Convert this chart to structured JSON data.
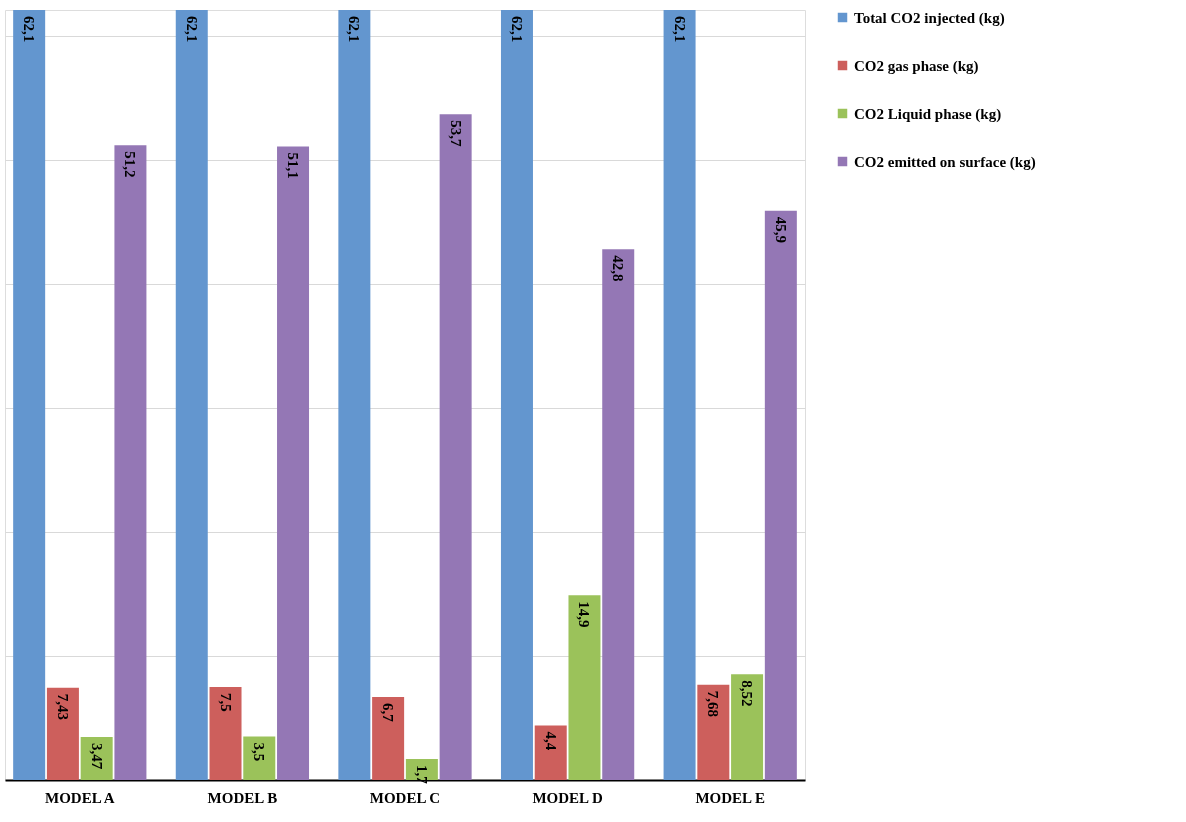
{
  "chart_data": {
    "type": "bar",
    "categories": [
      "MODEL A",
      "MODEL B",
      "MODEL C",
      "MODEL D",
      "MODEL E"
    ],
    "series": [
      {
        "name": "Total CO2 injected (kg)",
        "color": "#6396cf",
        "values": [
          62.1,
          62.1,
          62.1,
          62.1,
          62.1
        ],
        "value_labels": [
          "62,1",
          "62,1",
          "62,1",
          "62,1",
          "62,1"
        ]
      },
      {
        "name": "CO2 gas phase (kg)",
        "color": "#cd5f5c",
        "values": [
          7.43,
          7.5,
          6.7,
          4.4,
          7.68
        ],
        "value_labels": [
          "7,43",
          "7,5",
          "6,7",
          "4,4",
          "7,68"
        ]
      },
      {
        "name": "CO2 Liquid phase (kg)",
        "color": "#9bc25a",
        "values": [
          3.47,
          3.5,
          1.7,
          14.9,
          8.52
        ],
        "value_labels": [
          "3,47",
          "3,5",
          "1,7",
          "14,9",
          "8,52"
        ]
      },
      {
        "name": "CO2 emitted on surface (kg)",
        "color": "#9477b5",
        "values": [
          51.2,
          51.1,
          53.7,
          42.8,
          45.9
        ],
        "value_labels": [
          "51,2",
          "51,1",
          "53,7",
          "42,8",
          "45,9"
        ]
      }
    ],
    "ylim": [
      0,
      62.1
    ],
    "yticks": [
      {
        "value": 0,
        "label": null
      },
      {
        "value": 10,
        "label": null
      },
      {
        "value": 20,
        "label": null
      },
      {
        "value": 30,
        "label": null
      },
      {
        "value": 40,
        "label": null
      },
      {
        "value": 50,
        "label": null
      },
      {
        "value": 60,
        "label": null
      }
    ],
    "grid": "y",
    "legend": "right",
    "tick_labels": "x"
  }
}
